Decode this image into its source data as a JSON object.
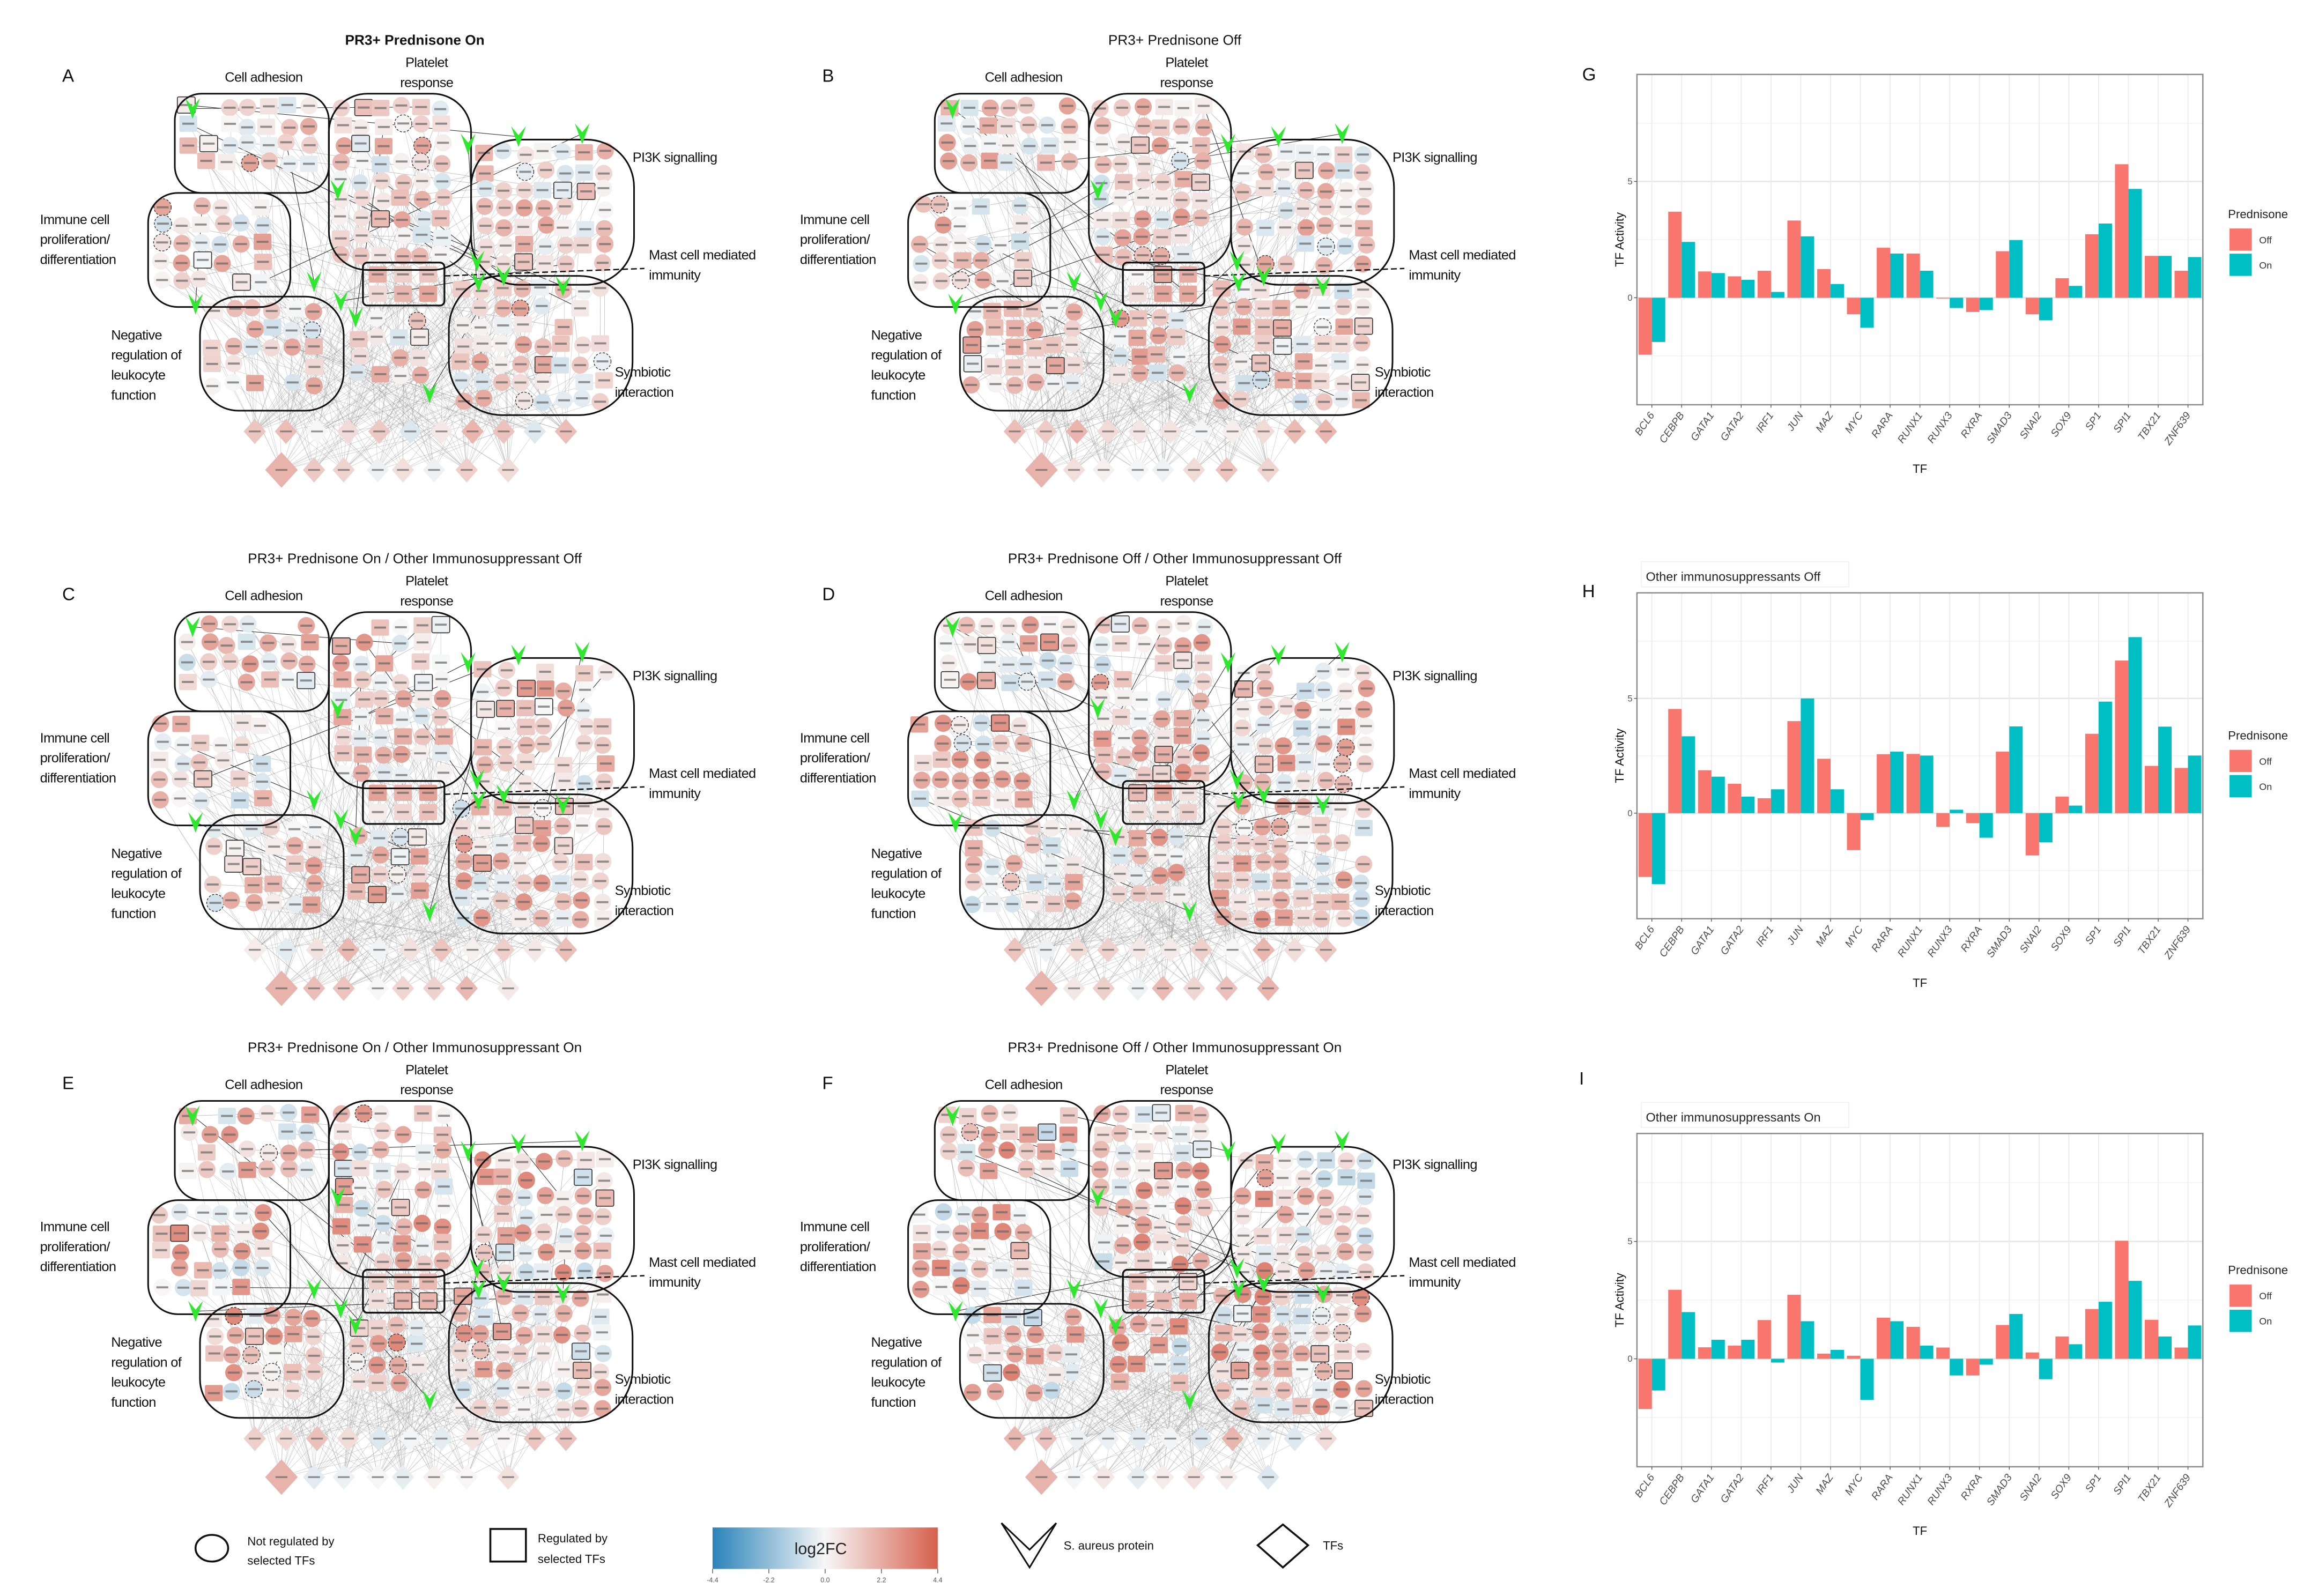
{
  "figure": {
    "network_panels": [
      {
        "letter": "A",
        "title": "PR3+ Prednisone On",
        "bold": true,
        "clusters": {
          "cell_adhesion": [
            "Cell adhesion"
          ],
          "platelet_response": [
            "Platelet",
            "response"
          ],
          "pi3k_signalling": [
            "PI3K signalling"
          ],
          "immune_cell": [
            "Immune cell",
            "proliferation/",
            "differentiation"
          ],
          "mast_cell": [
            "Mast cell mediated",
            "immunity"
          ],
          "negative_regulation": [
            "Negative",
            "regulation of",
            "leukocyte",
            "function"
          ],
          "symbiotic": [
            "Symbiotic",
            "interaction"
          ]
        }
      },
      {
        "letter": "B",
        "title": "PR3+ Prednisone Off",
        "bold": false,
        "clusters": {
          "cell_adhesion": [
            "Cell adhesion"
          ],
          "platelet_response": [
            "Platelet",
            "response"
          ],
          "pi3k_signalling": [
            "PI3K signalling"
          ],
          "immune_cell": [
            "Immune cell",
            "proliferation/",
            "differentiation"
          ],
          "mast_cell": [
            "Mast cell mediated",
            "immunity"
          ],
          "negative_regulation": [
            "Negative",
            "regulation of",
            "leukocyte",
            "function"
          ],
          "symbiotic": [
            "Symbiotic",
            "interaction"
          ]
        }
      },
      {
        "letter": "C",
        "title": "PR3+ Prednisone On / Other Immunosuppressant Off",
        "bold": false,
        "clusters": {
          "cell_adhesion": [
            "Cell adhesion"
          ],
          "platelet_response": [
            "Platelet",
            "response"
          ],
          "pi3k_signalling": [
            "PI3K signalling"
          ],
          "immune_cell": [
            "Immune cell",
            "proliferation/",
            "differentiation"
          ],
          "mast_cell": [
            "Mast cell mediated",
            "immunity"
          ],
          "negative_regulation": [
            "Negative",
            "regulation of",
            "leukocyte",
            "function"
          ],
          "symbiotic": [
            "Symbiotic",
            "interaction"
          ]
        }
      },
      {
        "letter": "D",
        "title": "PR3+ Prednisone Off / Other Immunosuppressant Off",
        "bold": false,
        "clusters": {
          "cell_adhesion": [
            "Cell adhesion"
          ],
          "platelet_response": [
            "Platelet",
            "response"
          ],
          "pi3k_signalling": [
            "PI3K signalling"
          ],
          "immune_cell": [
            "Immune cell",
            "proliferation/",
            "differentiation"
          ],
          "mast_cell": [
            "Mast cell mediated",
            "immunity"
          ],
          "negative_regulation": [
            "Negative",
            "regulation of",
            "leukocyte",
            "function"
          ],
          "symbiotic": [
            "Symbiotic",
            "interaction"
          ]
        }
      },
      {
        "letter": "E",
        "title": "PR3+ Prednisone On / Other Immunosuppressant On",
        "bold": false,
        "clusters": {
          "cell_adhesion": [
            "Cell adhesion"
          ],
          "platelet_response": [
            "Platelet",
            "response"
          ],
          "pi3k_signalling": [
            "PI3K signalling"
          ],
          "immune_cell": [
            "Immune cell",
            "proliferation/",
            "differentiation"
          ],
          "mast_cell": [
            "Mast cell mediated",
            "immunity"
          ],
          "negative_regulation": [
            "Negative",
            "regulation of",
            "leukocyte",
            "function"
          ],
          "symbiotic": [
            "Symbiotic",
            "interaction"
          ]
        }
      },
      {
        "letter": "F",
        "title": "PR3+ Prednisone Off / Other Immunosuppressant On",
        "bold": false,
        "clusters": {
          "cell_adhesion": [
            "Cell adhesion"
          ],
          "platelet_response": [
            "Platelet",
            "response"
          ],
          "pi3k_signalling": [
            "PI3K signalling"
          ],
          "immune_cell": [
            "Immune cell",
            "proliferation/",
            "differentiation"
          ],
          "mast_cell": [
            "Mast cell mediated",
            "immunity"
          ],
          "negative_regulation": [
            "Negative",
            "regulation of",
            "leukocyte",
            "function"
          ],
          "symbiotic": [
            "Symbiotic",
            "interaction"
          ]
        }
      }
    ],
    "legend": {
      "not_regulated": [
        "Not regulated by",
        "selected TFs"
      ],
      "regulated": [
        "Regulated by",
        "selected TFs"
      ],
      "colorbar_label": "log2FC",
      "colorbar_ticks": [
        "-4.4",
        "-2.2",
        "0.0",
        "2.2",
        "4.4"
      ],
      "colorbar_colors": [
        "#2b83ba",
        "#f7f7f7",
        "#d6604d"
      ],
      "saureus": "S. aureus protein",
      "tfs": "TFs",
      "saureus_color": "#2ee82e"
    }
  },
  "chart_data": [
    {
      "type": "bar",
      "letter": "G",
      "title": "",
      "xlabel": "TF",
      "ylabel": "TF Activity",
      "ylim": [
        -4.6,
        9.6
      ],
      "yticks": [
        "0",
        "5"
      ],
      "grid": true,
      "legend_title": "Prednisone",
      "legend_position": "right",
      "categories": [
        "BCL6",
        "CEBPB",
        "GATA1",
        "GATA2",
        "IRF1",
        "JUN",
        "MAZ",
        "MYC",
        "RARA",
        "RUNX1",
        "RUNX3",
        "RXRA",
        "SMAD3",
        "SNAI2",
        "SOX9",
        "SP1",
        "SPI1",
        "TBX21",
        "ZNF639"
      ],
      "series": [
        {
          "name": "Off",
          "color": "#F8766D",
          "values": [
            -2.45,
            3.7,
            1.13,
            0.92,
            1.16,
            3.32,
            1.23,
            -0.71,
            2.15,
            1.9,
            -0.02,
            -0.61,
            2.0,
            -0.71,
            0.84,
            2.73,
            5.74,
            1.8,
            1.16
          ]
        },
        {
          "name": "On",
          "color": "#00BFC4",
          "values": [
            -1.9,
            2.4,
            1.06,
            0.77,
            0.25,
            2.64,
            0.59,
            -1.29,
            1.9,
            1.16,
            -0.44,
            -0.53,
            2.48,
            -0.97,
            0.51,
            3.19,
            4.68,
            1.8,
            1.75
          ]
        }
      ]
    },
    {
      "type": "bar",
      "letter": "H",
      "title": "Other immunosuppressants Off",
      "xlabel": "TF",
      "ylabel": "TF Activity",
      "ylim": [
        -4.6,
        9.6
      ],
      "yticks": [
        "0",
        "5"
      ],
      "grid": true,
      "legend_title": "Prednisone",
      "legend_position": "right",
      "categories": [
        "BCL6",
        "CEBPB",
        "GATA1",
        "GATA2",
        "IRF1",
        "JUN",
        "MAZ",
        "MYC",
        "RARA",
        "RUNX1",
        "RUNX3",
        "RXRA",
        "SMAD3",
        "SNAI2",
        "SOX9",
        "SP1",
        "SPI1",
        "TBX21",
        "ZNF639"
      ],
      "series": [
        {
          "name": "Off",
          "color": "#F8766D",
          "values": [
            -2.78,
            4.54,
            1.87,
            1.28,
            0.65,
            4.01,
            2.37,
            -1.61,
            2.57,
            2.58,
            -0.6,
            -0.43,
            2.68,
            -1.84,
            0.72,
            3.46,
            6.65,
            2.06,
            1.97
          ]
        },
        {
          "name": "On",
          "color": "#00BFC4",
          "values": [
            -3.09,
            3.35,
            1.59,
            0.72,
            1.04,
            5.0,
            1.04,
            -0.3,
            2.68,
            2.51,
            0.15,
            -1.07,
            3.78,
            -1.27,
            0.33,
            4.86,
            7.67,
            3.77,
            2.51
          ]
        }
      ]
    },
    {
      "type": "bar",
      "letter": "I",
      "title": "Other immunosuppressants On",
      "xlabel": "TF",
      "ylabel": "TF Activity",
      "ylim": [
        -4.6,
        9.6
      ],
      "yticks": [
        "0",
        "5"
      ],
      "grid": true,
      "legend_title": "Prednisone",
      "legend_position": "right",
      "categories": [
        "BCL6",
        "CEBPB",
        "GATA1",
        "GATA2",
        "IRF1",
        "JUN",
        "MAZ",
        "MYC",
        "RARA",
        "RUNX1",
        "RUNX3",
        "RXRA",
        "SMAD3",
        "SNAI2",
        "SOX9",
        "SP1",
        "SPI1",
        "TBX21",
        "ZNF639"
      ],
      "series": [
        {
          "name": "Off",
          "color": "#F8766D",
          "values": [
            -2.14,
            2.94,
            0.49,
            0.56,
            1.65,
            2.73,
            0.22,
            0.13,
            1.75,
            1.36,
            0.48,
            -0.71,
            1.44,
            0.27,
            0.95,
            2.12,
            5.03,
            1.66,
            0.48
          ]
        },
        {
          "name": "On",
          "color": "#00BFC4",
          "values": [
            -1.35,
            1.99,
            0.81,
            0.81,
            -0.16,
            1.6,
            0.38,
            -1.75,
            1.6,
            0.56,
            -0.71,
            -0.25,
            1.91,
            -0.87,
            0.62,
            2.43,
            3.32,
            0.95,
            1.42
          ]
        }
      ]
    }
  ]
}
